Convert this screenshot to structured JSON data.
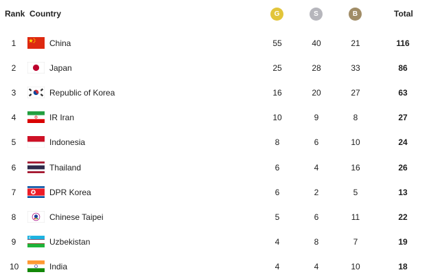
{
  "header": {
    "rank_label": "Rank",
    "country_label": "Country",
    "gold_label": "G",
    "silver_label": "S",
    "bronze_label": "B",
    "total_label": "Total"
  },
  "colors": {
    "gold": "#e2c53a",
    "silver": "#b6b6bc",
    "bronze": "#a08c66"
  },
  "rows": [
    {
      "rank": "1",
      "country": "China",
      "flag": "china-flag-icon",
      "gold": "55",
      "silver": "40",
      "bronze": "21",
      "total": "116"
    },
    {
      "rank": "2",
      "country": "Japan",
      "flag": "japan-flag-icon",
      "gold": "25",
      "silver": "28",
      "bronze": "33",
      "total": "86"
    },
    {
      "rank": "3",
      "country": "Republic of Korea",
      "flag": "korea-flag-icon",
      "gold": "16",
      "silver": "20",
      "bronze": "27",
      "total": "63"
    },
    {
      "rank": "4",
      "country": "IR Iran",
      "flag": "iran-flag-icon",
      "gold": "10",
      "silver": "9",
      "bronze": "8",
      "total": "27"
    },
    {
      "rank": "5",
      "country": "Indonesia",
      "flag": "indonesia-flag-icon",
      "gold": "8",
      "silver": "6",
      "bronze": "10",
      "total": "24"
    },
    {
      "rank": "6",
      "country": "Thailand",
      "flag": "thailand-flag-icon",
      "gold": "6",
      "silver": "4",
      "bronze": "16",
      "total": "26"
    },
    {
      "rank": "7",
      "country": "DPR Korea",
      "flag": "dpr-korea-flag-icon",
      "gold": "6",
      "silver": "2",
      "bronze": "5",
      "total": "13"
    },
    {
      "rank": "8",
      "country": "Chinese Taipei",
      "flag": "chinese-taipei-flag-icon",
      "gold": "5",
      "silver": "6",
      "bronze": "11",
      "total": "22"
    },
    {
      "rank": "9",
      "country": "Uzbekistan",
      "flag": "uzbekistan-flag-icon",
      "gold": "4",
      "silver": "8",
      "bronze": "7",
      "total": "19"
    },
    {
      "rank": "10",
      "country": "India",
      "flag": "india-flag-icon",
      "gold": "4",
      "silver": "4",
      "bronze": "10",
      "total": "18"
    }
  ]
}
